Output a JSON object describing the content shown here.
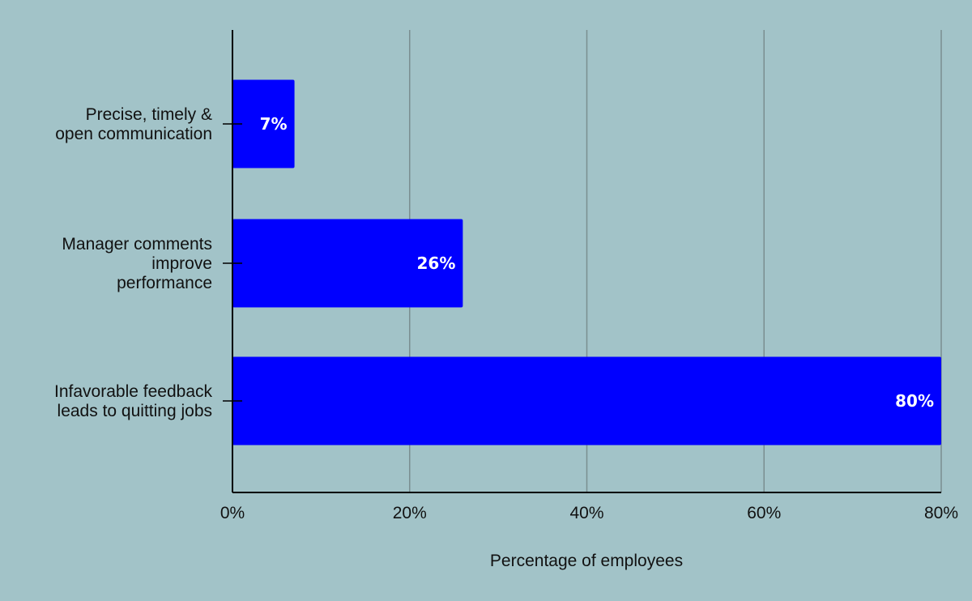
{
  "chart_data": {
    "type": "bar",
    "orientation": "horizontal",
    "categories": [
      [
        "Precise, timely &",
        "open communication"
      ],
      [
        "Manager comments",
        "improve",
        "performance"
      ],
      [
        "Infavorable feedback",
        "leads to quitting jobs"
      ]
    ],
    "values": [
      7,
      26,
      80
    ],
    "data_labels": [
      "7%",
      "26%",
      "80%"
    ],
    "xlabel": "Percentage of employees",
    "xlim": [
      0,
      80
    ],
    "x_ticks": [
      0,
      20,
      40,
      60,
      80
    ],
    "x_tick_labels": [
      "0%",
      "20%",
      "40%",
      "60%",
      "80%"
    ],
    "grid": "vertical",
    "legend": "none",
    "colors": {
      "bar": "#0000ff",
      "background": "#a2c3c8",
      "grid": "#7a8e90",
      "axis": "#000000"
    }
  }
}
